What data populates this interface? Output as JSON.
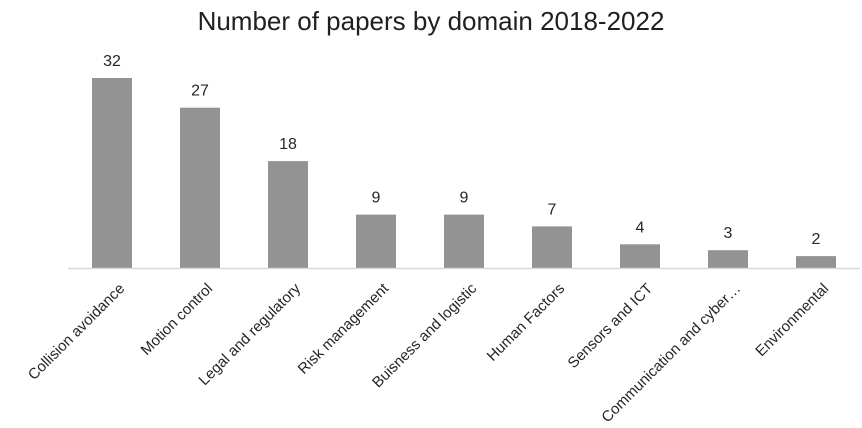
{
  "chart_data": {
    "type": "bar",
    "title": "Number of papers by domain 2018-2022",
    "categories": [
      "Collision avoidance",
      "Motion control",
      "Legal and regulatory",
      "Risk management",
      "Buisness and logistic",
      "Human Factors",
      "Sensors and ICT",
      "Communication and cyber…",
      "Environmental"
    ],
    "values": [
      32,
      27,
      18,
      9,
      9,
      7,
      4,
      3,
      2
    ],
    "ylim": [
      0,
      32
    ],
    "grid": false,
    "legend": "none",
    "colors": {
      "bar": "#939393",
      "axis": "#d9d9d9"
    }
  }
}
